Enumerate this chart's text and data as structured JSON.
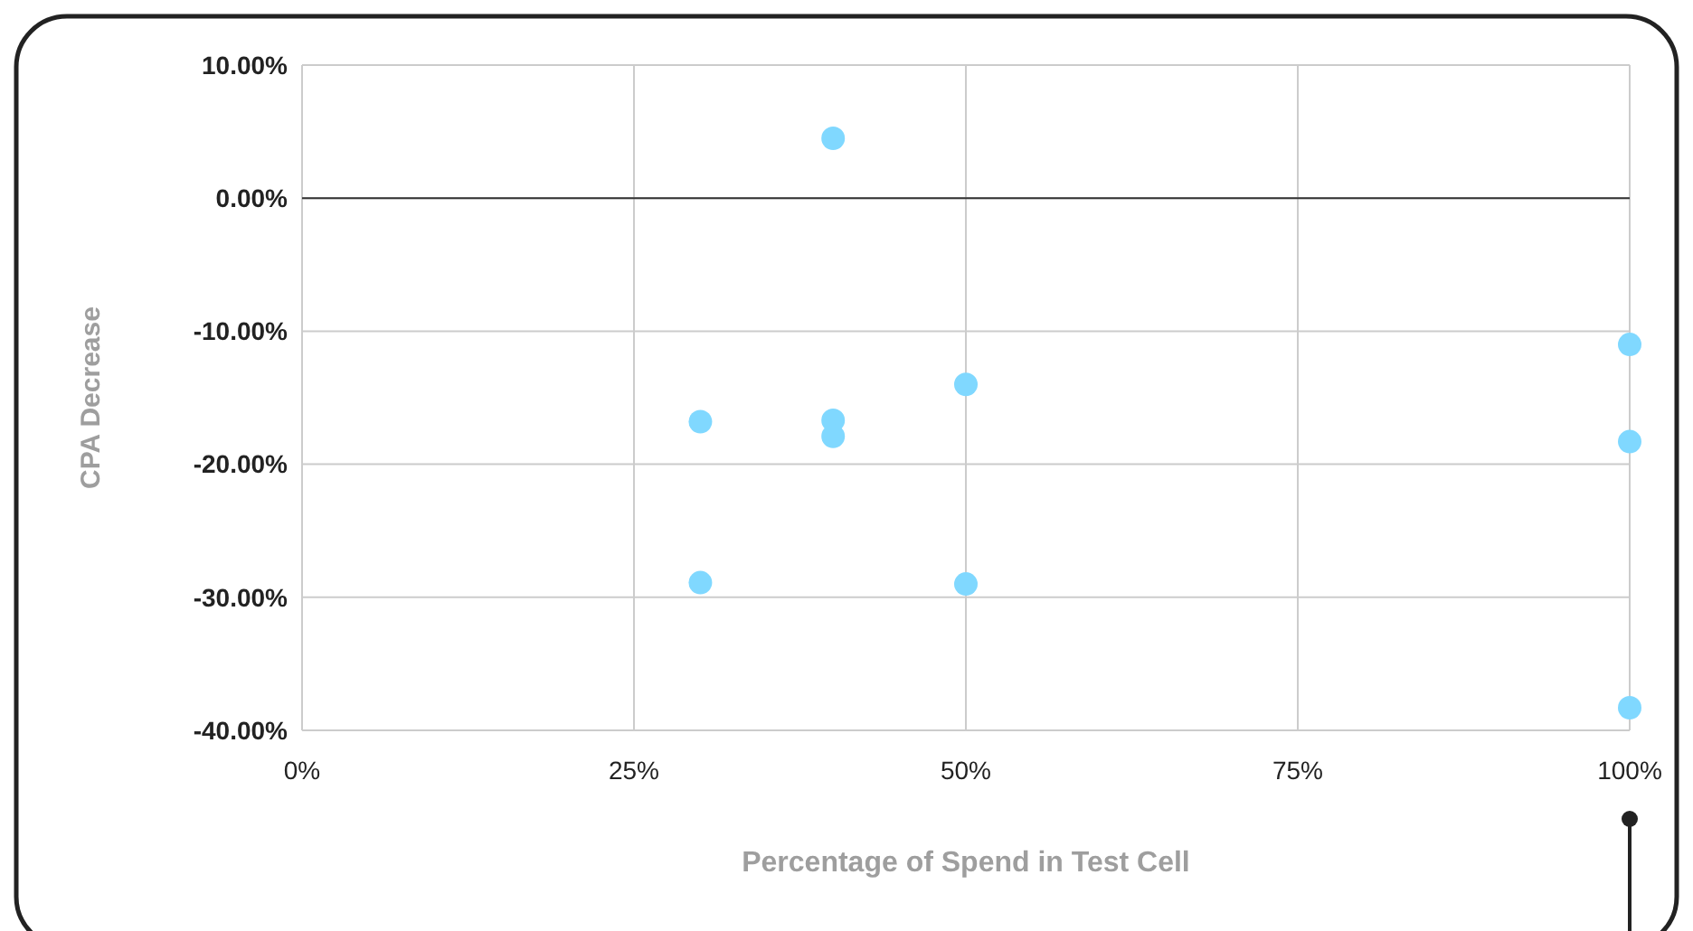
{
  "chart_data": {
    "type": "scatter",
    "xlabel": "Percentage of Spend in Test Cell",
    "ylabel": "CPA Decrease",
    "x": [
      40,
      30,
      40,
      40,
      50,
      100,
      100,
      30,
      50,
      100
    ],
    "series": [
      {
        "color": "#80d8ff",
        "values": [
          4.5,
          -16.8,
          -16.7,
          -17.9,
          -14.0,
          -11.0,
          -18.3,
          -28.9,
          -29.0,
          -38.3
        ]
      }
    ],
    "xlim": [
      0,
      100
    ],
    "xticks": [
      {
        "value": 0,
        "label": "0%"
      },
      {
        "value": 25,
        "label": "25%"
      },
      {
        "value": 50,
        "label": "50%"
      },
      {
        "value": 75,
        "label": "75%"
      },
      {
        "value": 100,
        "label": "100%"
      }
    ],
    "ylim": [
      -40,
      10
    ],
    "yticks": [
      {
        "value": -40,
        "label": "-40.00%"
      },
      {
        "value": -30,
        "label": "-30.00%"
      },
      {
        "value": -20,
        "label": "-20.00%"
      },
      {
        "value": -10,
        "label": "-10.00%"
      },
      {
        "value": 0,
        "label": "0.00%"
      },
      {
        "value": 10,
        "label": "10.00%"
      }
    ],
    "ref_lines": [
      {
        "axis": "y",
        "value": 0,
        "color": "#333333"
      }
    ],
    "grid": true,
    "marker": "circle"
  }
}
